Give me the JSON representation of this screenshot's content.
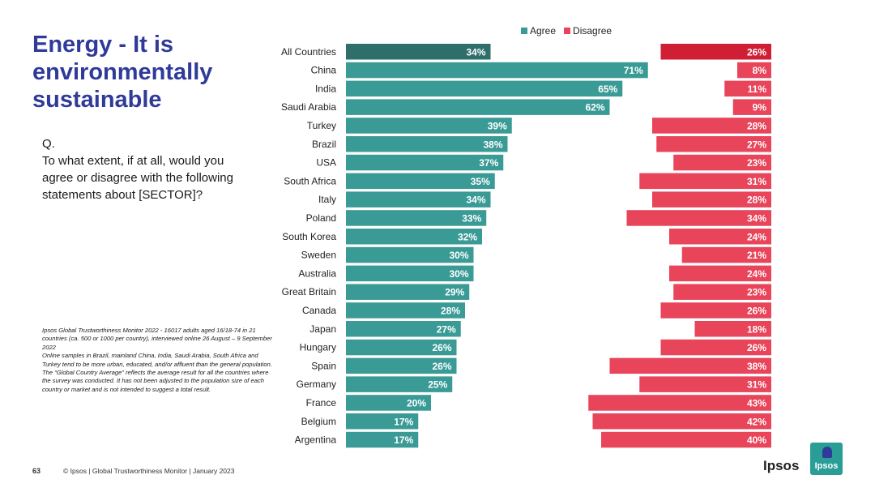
{
  "slide": {
    "title": "Energy - It is environmentally sustainable",
    "question_q": "Q.",
    "question_text": "To what extent, if at all, would you agree or disagree with the following statements about [SECTOR]?",
    "notes": [
      "Ipsos Global Trustworthiness Monitor 2022 - 16017 adults aged 16/18-74 in 21 countries (ca. 500 or 1000 per country), interviewed online 26 August – 9 September 2022",
      "Online samples in Brazil, mainland China, India, Saudi Arabia, South Africa and Turkey tend to be more urban, educated, and/or affluent than the general population.",
      "The “Global Country Average” reflects the average result for all the countries where the survey was conducted. It has not been adjusted to the population size of each country or market and is not intended to suggest a total result."
    ],
    "page_number": "63",
    "footer_text": "© Ipsos | Global Trustworthiness Monitor | January 2023",
    "logo_text": "Ipsos",
    "badge_text": "Ipsos"
  },
  "colors": {
    "agree": "#3a9b96",
    "agree_highlight": "#2e6f6c",
    "disagree": "#e8445a",
    "disagree_highlight": "#d01f35",
    "title": "#2f3a99"
  },
  "chart_data": {
    "type": "bar",
    "orientation": "horizontal-diverging",
    "legend": [
      {
        "name": "Agree",
        "color": "#3a9b96"
      },
      {
        "name": "Disagree",
        "color": "#e8445a"
      }
    ],
    "categories": [
      "All Countries",
      "China",
      "India",
      "Saudi Arabia",
      "Turkey",
      "Brazil",
      "USA",
      "South Africa",
      "Italy",
      "Poland",
      "South Korea",
      "Sweden",
      "Australia",
      "Great Britain",
      "Canada",
      "Japan",
      "Hungary",
      "Spain",
      "Germany",
      "France",
      "Belgium",
      "Argentina"
    ],
    "series": [
      {
        "name": "Agree",
        "values": [
          34,
          71,
          65,
          62,
          39,
          38,
          37,
          35,
          34,
          33,
          32,
          30,
          30,
          29,
          28,
          27,
          26,
          26,
          25,
          20,
          17,
          17
        ]
      },
      {
        "name": "Disagree",
        "values": [
          26,
          8,
          11,
          9,
          28,
          27,
          23,
          31,
          28,
          34,
          24,
          21,
          24,
          23,
          26,
          18,
          26,
          38,
          31,
          43,
          42,
          40
        ]
      }
    ],
    "value_suffix": "%",
    "highlight_category": "All Countries"
  }
}
